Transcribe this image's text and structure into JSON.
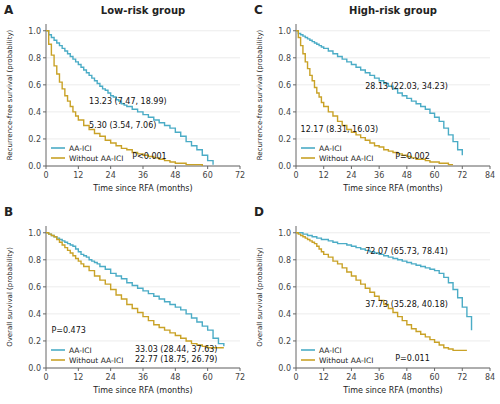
{
  "chart_data": [
    {
      "type": "step",
      "panel_label": "A",
      "title": "Low-risk group",
      "xlabel": "Time since RFA (months)",
      "ylabel": "Recurrence-free survival (probability)",
      "series": [
        {
          "name": "AA-ICI",
          "color": "#4BACC6",
          "x": [
            0,
            1,
            2,
            3,
            4,
            5,
            6,
            7,
            8,
            9,
            10,
            11,
            12,
            13,
            14,
            15,
            16,
            17,
            18,
            19,
            20,
            21,
            22,
            23,
            24,
            25,
            26,
            27,
            28,
            29,
            30,
            32,
            34,
            36,
            38,
            40,
            42,
            44,
            46,
            48,
            50,
            52,
            54,
            56,
            58,
            60,
            62
          ],
          "values": [
            1.0,
            0.97,
            0.95,
            0.93,
            0.91,
            0.89,
            0.87,
            0.85,
            0.83,
            0.81,
            0.79,
            0.77,
            0.75,
            0.73,
            0.71,
            0.69,
            0.67,
            0.65,
            0.63,
            0.61,
            0.59,
            0.57,
            0.56,
            0.54,
            0.52,
            0.51,
            0.49,
            0.48,
            0.46,
            0.45,
            0.44,
            0.42,
            0.4,
            0.38,
            0.36,
            0.34,
            0.32,
            0.3,
            0.28,
            0.25,
            0.22,
            0.18,
            0.15,
            0.12,
            0.08,
            0.04,
            0.01
          ]
        },
        {
          "name": "Without AA-ICI",
          "color": "#C9A227",
          "x": [
            0,
            1,
            2,
            3,
            4,
            5,
            6,
            7,
            8,
            9,
            10,
            11,
            12,
            14,
            16,
            18,
            20,
            22,
            24,
            26,
            28,
            30,
            32,
            34,
            36,
            38,
            40,
            42,
            44,
            46,
            48,
            50,
            52,
            54,
            56,
            58
          ],
          "values": [
            1.0,
            0.9,
            0.82,
            0.74,
            0.68,
            0.62,
            0.57,
            0.52,
            0.48,
            0.44,
            0.4,
            0.37,
            0.34,
            0.3,
            0.27,
            0.24,
            0.22,
            0.19,
            0.17,
            0.15,
            0.13,
            0.12,
            0.1,
            0.09,
            0.08,
            0.07,
            0.06,
            0.05,
            0.04,
            0.03,
            0.02,
            0.02,
            0.01,
            0.01,
            0.01,
            0.0
          ]
        }
      ],
      "xlim": [
        0,
        72
      ],
      "ylim": [
        0.0,
        1.05
      ],
      "xticks": [
        0,
        12,
        24,
        36,
        48,
        60,
        72
      ],
      "yticks": [
        {
          "value": 0.0,
          "label": "0.0"
        },
        0.2,
        0.4,
        0.6,
        0.8,
        {
          "value": 1.0,
          "label": "1.0"
        }
      ],
      "legend": "lower left",
      "annotations": [
        {
          "text": "13.23 (7.47, 18.99)",
          "x": 16,
          "y": 0.46
        },
        {
          "text": "5.30 (3.54, 7.06)",
          "x": 16,
          "y": 0.28
        },
        {
          "text": "P<0.001",
          "x": 32,
          "y": 0.055
        }
      ]
    },
    {
      "type": "step",
      "panel_label": "B",
      "xlabel": "Time since RFA (months)",
      "ylabel": "Overall survival (probability)",
      "series": [
        {
          "name": "AA-ICI",
          "color": "#4BACC6",
          "x": [
            0,
            1,
            2,
            3,
            4,
            5,
            6,
            7,
            8,
            9,
            10,
            11,
            12,
            13,
            14,
            15,
            16,
            17,
            18,
            19,
            20,
            22,
            24,
            26,
            28,
            30,
            32,
            34,
            36,
            38,
            40,
            42,
            44,
            46,
            48,
            50,
            52,
            54,
            56,
            58,
            60,
            62,
            64,
            66
          ],
          "values": [
            1.0,
            0.99,
            0.98,
            0.97,
            0.96,
            0.95,
            0.94,
            0.93,
            0.92,
            0.91,
            0.9,
            0.88,
            0.86,
            0.84,
            0.83,
            0.82,
            0.8,
            0.79,
            0.78,
            0.77,
            0.75,
            0.73,
            0.7,
            0.68,
            0.66,
            0.63,
            0.61,
            0.59,
            0.57,
            0.55,
            0.53,
            0.51,
            0.49,
            0.47,
            0.45,
            0.43,
            0.4,
            0.37,
            0.34,
            0.31,
            0.28,
            0.22,
            0.18,
            0.16
          ]
        },
        {
          "name": "Without AA-ICI",
          "color": "#C9A227",
          "x": [
            0,
            1,
            2,
            3,
            4,
            5,
            6,
            7,
            8,
            9,
            10,
            11,
            12,
            13,
            14,
            16,
            18,
            20,
            22,
            24,
            26,
            28,
            30,
            32,
            34,
            36,
            38,
            40,
            42,
            44,
            46,
            48,
            50,
            52,
            54,
            56,
            58,
            60,
            62,
            64,
            66
          ],
          "values": [
            1.0,
            0.99,
            0.98,
            0.97,
            0.95,
            0.93,
            0.91,
            0.89,
            0.87,
            0.85,
            0.83,
            0.81,
            0.79,
            0.77,
            0.75,
            0.72,
            0.68,
            0.65,
            0.62,
            0.58,
            0.54,
            0.51,
            0.47,
            0.44,
            0.41,
            0.38,
            0.35,
            0.32,
            0.3,
            0.28,
            0.26,
            0.24,
            0.22,
            0.2,
            0.18,
            0.17,
            0.16,
            0.15,
            0.15,
            0.15,
            0.15
          ]
        }
      ],
      "xlim": [
        0,
        72
      ],
      "ylim": [
        0.0,
        1.05
      ],
      "xticks": [
        0,
        12,
        24,
        36,
        48,
        60,
        72
      ],
      "yticks": [
        {
          "value": 0.0,
          "label": "0.0"
        },
        0.2,
        0.4,
        0.6,
        0.8,
        {
          "value": 1.0,
          "label": "1.0"
        }
      ],
      "legend": "lower left",
      "annotations": [
        {
          "text": "33.03 (28.44, 37.63)",
          "x": 33,
          "y": 0.115
        },
        {
          "text": "22.77 (18.75, 26.79)",
          "x": 33,
          "y": 0.045
        },
        {
          "text": "P=0.473",
          "x": 2,
          "y": 0.26
        }
      ]
    },
    {
      "type": "step",
      "panel_label": "C",
      "title": "High-risk group",
      "xlabel": "Time since RFA (months)",
      "ylabel": "Recurrence-free survival (probability)",
      "series": [
        {
          "name": "AA-ICI",
          "color": "#4BACC6",
          "x": [
            0,
            1,
            2,
            3,
            4,
            5,
            6,
            7,
            8,
            9,
            10,
            11,
            12,
            14,
            16,
            18,
            20,
            22,
            24,
            26,
            28,
            30,
            32,
            34,
            36,
            38,
            40,
            42,
            44,
            46,
            48,
            50,
            52,
            54,
            56,
            58,
            60,
            62,
            64,
            66,
            68,
            70,
            72
          ],
          "values": [
            1.0,
            0.98,
            0.97,
            0.96,
            0.95,
            0.94,
            0.93,
            0.92,
            0.91,
            0.9,
            0.89,
            0.88,
            0.87,
            0.85,
            0.83,
            0.81,
            0.79,
            0.77,
            0.75,
            0.73,
            0.71,
            0.69,
            0.67,
            0.65,
            0.63,
            0.61,
            0.59,
            0.57,
            0.54,
            0.52,
            0.5,
            0.48,
            0.46,
            0.44,
            0.42,
            0.39,
            0.36,
            0.33,
            0.28,
            0.23,
            0.18,
            0.12,
            0.08
          ]
        },
        {
          "name": "Without AA-ICI",
          "color": "#C9A227",
          "x": [
            0,
            1,
            2,
            3,
            4,
            5,
            6,
            7,
            8,
            9,
            10,
            11,
            12,
            14,
            16,
            18,
            20,
            22,
            24,
            26,
            28,
            30,
            32,
            34,
            36,
            38,
            40,
            42,
            44,
            46,
            48,
            50,
            52,
            54,
            56,
            58,
            60,
            62,
            64,
            66,
            68
          ],
          "values": [
            1.0,
            0.95,
            0.89,
            0.83,
            0.77,
            0.72,
            0.67,
            0.63,
            0.58,
            0.54,
            0.51,
            0.47,
            0.44,
            0.4,
            0.37,
            0.33,
            0.3,
            0.27,
            0.25,
            0.23,
            0.21,
            0.19,
            0.17,
            0.15,
            0.14,
            0.12,
            0.11,
            0.1,
            0.09,
            0.08,
            0.07,
            0.06,
            0.05,
            0.05,
            0.04,
            0.03,
            0.03,
            0.02,
            0.02,
            0.01,
            0.01
          ]
        }
      ],
      "xlim": [
        0,
        84
      ],
      "ylim": [
        0.0,
        1.05
      ],
      "xticks": [
        0,
        12,
        24,
        36,
        48,
        60,
        72,
        84
      ],
      "yticks": [
        {
          "value": 0.0,
          "label": "0.0"
        },
        0.2,
        0.4,
        0.6,
        0.8,
        {
          "value": 1.0,
          "label": "1.0"
        }
      ],
      "legend": "lower left",
      "annotations": [
        {
          "text": "28.13 (22.03, 34.23)",
          "x": 30,
          "y": 0.57
        },
        {
          "text": "12.17 (8.31, 16.03)",
          "x": 2,
          "y": 0.25
        },
        {
          "text": "P=0.002",
          "x": 43,
          "y": 0.055
        }
      ]
    },
    {
      "type": "step",
      "panel_label": "D",
      "xlabel": "Time since RFA (months)",
      "ylabel": "Overall survival (probability)",
      "series": [
        {
          "name": "AA-ICI",
          "color": "#4BACC6",
          "x": [
            0,
            1,
            2,
            3,
            4,
            5,
            6,
            7,
            8,
            9,
            10,
            11,
            12,
            14,
            16,
            18,
            20,
            22,
            24,
            26,
            28,
            30,
            32,
            34,
            36,
            38,
            40,
            42,
            44,
            46,
            48,
            50,
            52,
            54,
            56,
            58,
            60,
            62,
            64,
            66,
            68,
            70,
            72,
            74,
            76
          ],
          "values": [
            1.0,
            1.0,
            1.0,
            0.99,
            0.99,
            0.98,
            0.98,
            0.97,
            0.97,
            0.96,
            0.96,
            0.95,
            0.95,
            0.94,
            0.93,
            0.92,
            0.92,
            0.91,
            0.9,
            0.89,
            0.88,
            0.87,
            0.86,
            0.85,
            0.84,
            0.83,
            0.82,
            0.81,
            0.8,
            0.79,
            0.78,
            0.77,
            0.76,
            0.75,
            0.74,
            0.73,
            0.72,
            0.7,
            0.67,
            0.63,
            0.58,
            0.52,
            0.45,
            0.38,
            0.28
          ]
        },
        {
          "name": "Without AA-ICI",
          "color": "#C9A227",
          "x": [
            0,
            1,
            2,
            3,
            4,
            5,
            6,
            7,
            8,
            9,
            10,
            11,
            12,
            14,
            16,
            18,
            20,
            22,
            24,
            26,
            28,
            30,
            32,
            34,
            36,
            38,
            40,
            42,
            44,
            46,
            48,
            50,
            52,
            54,
            56,
            58,
            60,
            62,
            64,
            66,
            68,
            70,
            72,
            74
          ],
          "values": [
            1.0,
            0.99,
            0.98,
            0.97,
            0.96,
            0.95,
            0.94,
            0.93,
            0.92,
            0.9,
            0.88,
            0.86,
            0.84,
            0.82,
            0.79,
            0.77,
            0.74,
            0.71,
            0.68,
            0.65,
            0.62,
            0.59,
            0.56,
            0.53,
            0.5,
            0.47,
            0.44,
            0.41,
            0.38,
            0.35,
            0.32,
            0.29,
            0.27,
            0.25,
            0.23,
            0.21,
            0.19,
            0.17,
            0.15,
            0.14,
            0.13,
            0.13,
            0.13,
            0.13
          ]
        }
      ],
      "xlim": [
        0,
        84
      ],
      "ylim": [
        0.0,
        1.05
      ],
      "xticks": [
        0,
        12,
        24,
        36,
        48,
        60,
        72,
        84
      ],
      "yticks": [
        {
          "value": 0.0,
          "label": "0.0"
        },
        0.2,
        0.4,
        0.6,
        0.8,
        {
          "value": 1.0,
          "label": "1.0"
        }
      ],
      "legend": "lower left",
      "annotations": [
        {
          "text": "72.07 (65.73, 78.41)",
          "x": 30,
          "y": 0.84
        },
        {
          "text": "37.73 (35.28, 40.18)",
          "x": 30,
          "y": 0.45
        },
        {
          "text": "P=0.011",
          "x": 43,
          "y": 0.055
        }
      ]
    }
  ]
}
